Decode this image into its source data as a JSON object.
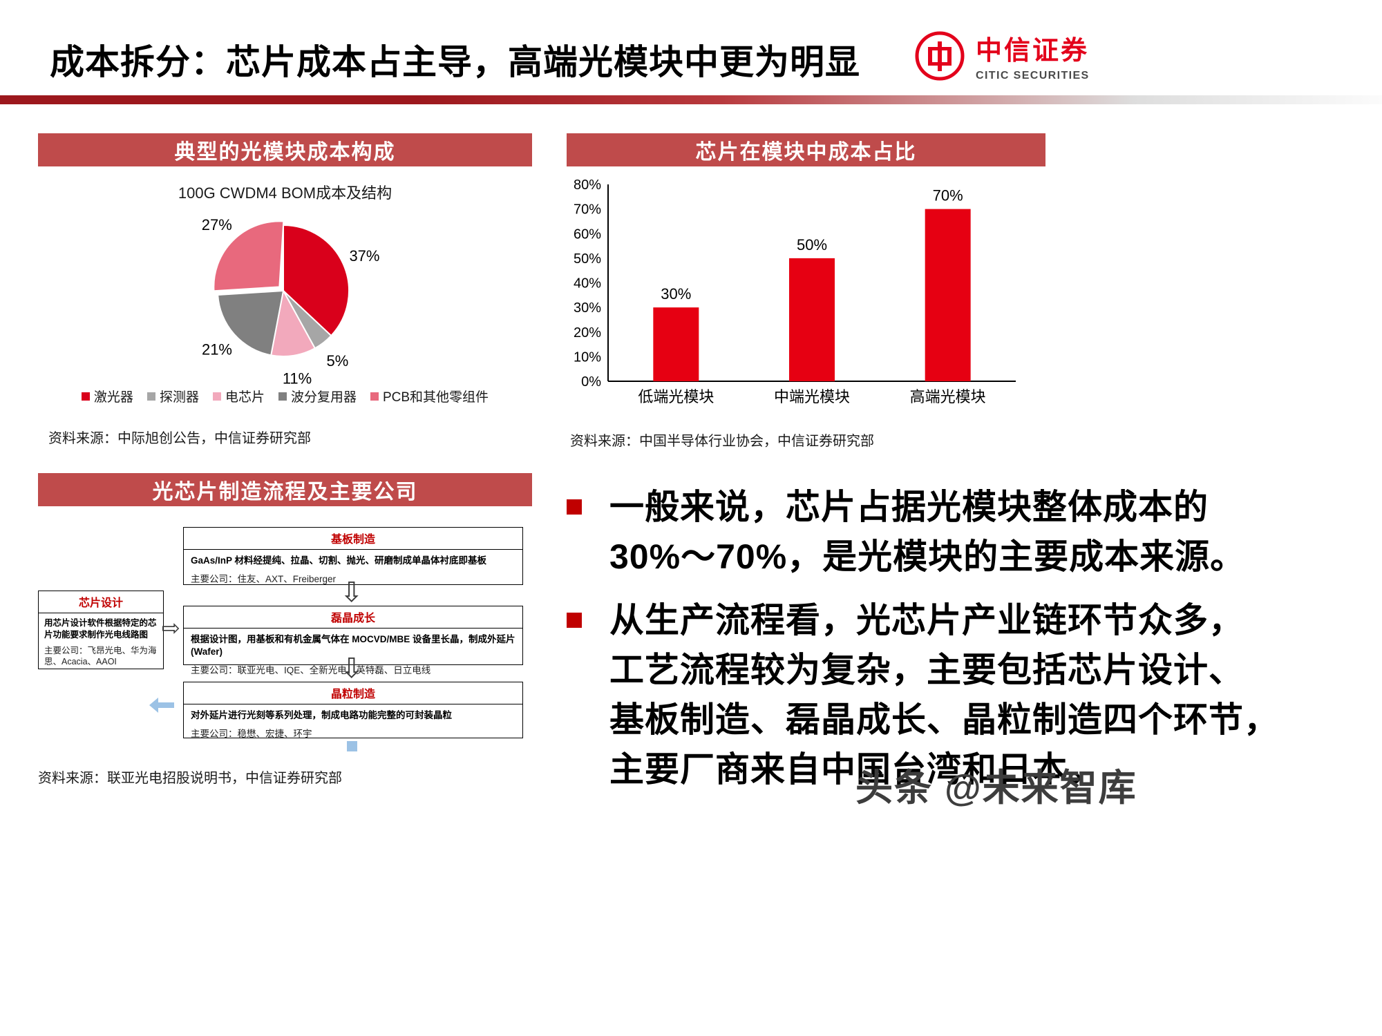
{
  "header": {
    "title": "成本拆分：芯片成本占主导，高端光模块中更为明显",
    "logo_cn": "中信证券",
    "logo_en": "CITIC SECURITIES"
  },
  "pie_panel": {
    "title": "典型的光模块成本构成",
    "source": "资料来源：中际旭创公告，中信证券研究部"
  },
  "bar_panel": {
    "title": "芯片在模块中成本占比",
    "source": "资料来源：中国半导体行业协会，中信证券研究部"
  },
  "flow_panel": {
    "title": "光芯片制造流程及主要公司",
    "source": "资料来源：联亚光电招股说明书，中信证券研究部",
    "design_box": {
      "title": "芯片设计",
      "body": "用芯片设计软件根据特定的芯片功能要求制作光电线路图",
      "companies": "主要公司：飞昂光电、华为海思、Acacia、AAOI"
    },
    "steps": [
      {
        "title": "基板制造",
        "body": "GaAs/InP 材料经提纯、拉晶、切割、抛光、研磨制成单晶体衬底即基板",
        "companies": "主要公司：住友、AXT、Freiberger"
      },
      {
        "title": "磊晶成长",
        "body": "根据设计图，用基板和有机金属气体在 MOCVD/MBE 设备里长晶，制成外延片(Wafer)",
        "companies": "主要公司：联亚光电、IQE、全新光电、英特磊、日立电线"
      },
      {
        "title": "晶粒制造",
        "body": "对外延片进行光刻等系列处理，制成电路功能完整的可封装晶粒",
        "companies": "主要公司：稳懋、宏捷、环宇"
      }
    ]
  },
  "bullets": [
    {
      "lines": [
        "一般来说，芯片占据光模块整体成本的",
        "30%～70%，是光模块的主要成本来源。"
      ]
    },
    {
      "lines": [
        "从生产流程看，光芯片产业链环节众多，",
        "工艺流程较为复杂，主要包括芯片设计、",
        "基板制造、磊晶成长、晶粒制造四个环节，",
        "主要厂商来自中国台湾和日本。"
      ]
    }
  ],
  "icons": {
    "down_arrow": "⇩",
    "right_arrow": "⇨"
  },
  "colors": {
    "banner": "#bf4b4b",
    "accent_red": "#e60012",
    "bullet_red": "#c00000",
    "divider_dark": "#9c181d",
    "light_blue": "#9cc2e5"
  },
  "watermark": "头条 @未来智库",
  "chart_data": [
    {
      "type": "pie",
      "title": "100G CWDM4 BOM成本及结构",
      "labels": [
        "激光器",
        "探测器",
        "电芯片",
        "波分复用器",
        "PCB和其他零组件"
      ],
      "values": [
        37,
        5,
        11,
        21,
        27
      ],
      "value_labels": [
        "37%",
        "5%",
        "11%",
        "21%",
        "27%"
      ],
      "colors": [
        "#d9001b",
        "#a6a6a6",
        "#f2a9bc",
        "#808080",
        "#e8697d"
      ],
      "legend_position": "bottom",
      "start_angle_deg": 0,
      "direction": "clockwise"
    },
    {
      "type": "bar",
      "title": "芯片在模块中成本占比",
      "categories": [
        "低端光模块",
        "中端光模块",
        "高端光模块"
      ],
      "values": [
        30,
        50,
        70
      ],
      "value_labels": [
        "30%",
        "50%",
        "70%"
      ],
      "bar_color": "#e60012",
      "xlabel": "",
      "ylabel": "",
      "ylim": [
        0,
        80
      ],
      "ytick_step": 10,
      "ytick_format": "percent",
      "grid": false,
      "legend_position": "none"
    }
  ]
}
